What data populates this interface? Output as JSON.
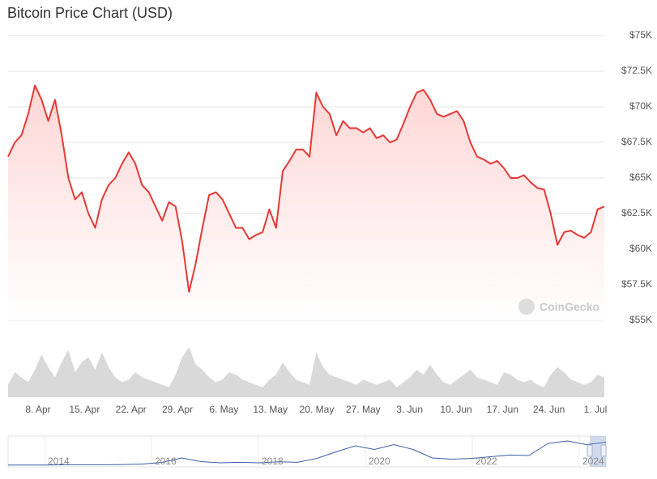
{
  "title": "Bitcoin Price Chart (USD)",
  "watermark": "CoinGecko",
  "colors": {
    "line": "#e53935",
    "fill_top": "#ffd3d3",
    "grid": "#e6e6e6",
    "volume": "#d9d9d9",
    "navigator_line": "#3f5fa8",
    "navigator_handle": "#9fb3d9"
  },
  "chart_data": {
    "type": "area",
    "title": "Bitcoin Price Chart (USD)",
    "y_ticks": [
      "$75K",
      "$72.5K",
      "$70K",
      "$67.5K",
      "$65K",
      "$62.5K",
      "$60K",
      "$57.5K",
      "$55K"
    ],
    "ylim": [
      55000,
      75000
    ],
    "x_ticks": [
      "8. Apr",
      "15. Apr",
      "22. Apr",
      "29. Apr",
      "6. May",
      "13. May",
      "20. May",
      "27. May",
      "3. Jun",
      "10. Jun",
      "17. Jun",
      "24. Jun",
      "1. Jul"
    ],
    "x": [
      "4. Apr",
      "5. Apr",
      "6. Apr",
      "7. Apr",
      "8. Apr",
      "9. Apr",
      "10. Apr",
      "11. Apr",
      "12. Apr",
      "13. Apr",
      "14. Apr",
      "15. Apr",
      "16. Apr",
      "17. Apr",
      "18. Apr",
      "19. Apr",
      "20. Apr",
      "21. Apr",
      "22. Apr",
      "23. Apr",
      "24. Apr",
      "25. Apr",
      "26. Apr",
      "27. Apr",
      "28. Apr",
      "29. Apr",
      "30. Apr",
      "1. May",
      "2. May",
      "3. May",
      "4. May",
      "5. May",
      "6. May",
      "7. May",
      "8. May",
      "9. May",
      "10. May",
      "11. May",
      "12. May",
      "13. May",
      "14. May",
      "15. May",
      "16. May",
      "17. May",
      "18. May",
      "19. May",
      "20. May",
      "21. May",
      "22. May",
      "23. May",
      "24. May",
      "25. May",
      "26. May",
      "27. May",
      "28. May",
      "29. May",
      "30. May",
      "31. May",
      "1. Jun",
      "2. Jun",
      "3. Jun",
      "4. Jun",
      "5. Jun",
      "6. Jun",
      "7. Jun",
      "8. Jun",
      "9. Jun",
      "10. Jun",
      "11. Jun",
      "12. Jun",
      "13. Jun",
      "14. Jun",
      "15. Jun",
      "16. Jun",
      "17. Jun",
      "18. Jun",
      "19. Jun",
      "20. Jun",
      "21. Jun",
      "22. Jun",
      "23. Jun",
      "24. Jun",
      "25. Jun",
      "26. Jun",
      "27. Jun",
      "28. Jun",
      "29. Jun",
      "30. Jun",
      "1. Jul",
      "2. Jul"
    ],
    "series": [
      {
        "values": [
          66500,
          67500,
          68000,
          69500,
          71500,
          70500,
          69000,
          70500,
          68000,
          65000,
          63500,
          64000,
          62500,
          61500,
          63500,
          64500,
          65000,
          66000,
          66800,
          66000,
          64500,
          64000,
          63000,
          62000,
          63300,
          63000,
          60500,
          57000,
          59000,
          61500,
          63800,
          64000,
          63500,
          62500,
          61500,
          61500,
          60700,
          61000,
          61200,
          62800,
          61500,
          65500,
          66200,
          67000,
          67000,
          66500,
          71000,
          70000,
          69500,
          68000,
          69000,
          68500,
          68500,
          68200,
          68500,
          67800,
          68000,
          67500,
          67700,
          68800,
          70000,
          71000,
          71200,
          70500,
          69500,
          69300,
          69500,
          69700,
          69000,
          67500,
          66500,
          66300,
          66000,
          66200,
          65700,
          65000,
          65000,
          65200,
          64700,
          64300,
          64200,
          62500,
          60300,
          61200,
          61300,
          61000,
          60800,
          61200,
          62800,
          63000
        ]
      }
    ],
    "volume": [
      0.25,
      0.5,
      0.4,
      0.3,
      0.55,
      0.85,
      0.6,
      0.4,
      0.7,
      0.95,
      0.5,
      0.7,
      0.8,
      0.55,
      0.9,
      0.6,
      0.4,
      0.3,
      0.35,
      0.5,
      0.4,
      0.35,
      0.3,
      0.25,
      0.2,
      0.45,
      0.8,
      1.0,
      0.65,
      0.55,
      0.4,
      0.3,
      0.35,
      0.5,
      0.45,
      0.35,
      0.3,
      0.25,
      0.2,
      0.35,
      0.45,
      0.7,
      0.5,
      0.35,
      0.3,
      0.25,
      0.9,
      0.6,
      0.45,
      0.4,
      0.35,
      0.3,
      0.25,
      0.35,
      0.3,
      0.25,
      0.3,
      0.35,
      0.2,
      0.3,
      0.4,
      0.55,
      0.45,
      0.65,
      0.45,
      0.3,
      0.25,
      0.35,
      0.45,
      0.55,
      0.4,
      0.35,
      0.3,
      0.25,
      0.5,
      0.45,
      0.35,
      0.3,
      0.35,
      0.25,
      0.2,
      0.45,
      0.6,
      0.5,
      0.35,
      0.3,
      0.25,
      0.3,
      0.45,
      0.4
    ],
    "grid": true,
    "navigator": {
      "labels": [
        "2014",
        "2016",
        "2018",
        "2020",
        "2022",
        "2024"
      ],
      "values": [
        0.01,
        0.01,
        0.01,
        0.02,
        0.02,
        0.02,
        0.03,
        0.05,
        0.12,
        0.3,
        0.15,
        0.1,
        0.12,
        0.1,
        0.14,
        0.12,
        0.28,
        0.55,
        0.8,
        0.65,
        0.85,
        0.65,
        0.3,
        0.25,
        0.28,
        0.35,
        0.42,
        0.4,
        0.9,
        1.0,
        0.85,
        0.95
      ]
    }
  }
}
